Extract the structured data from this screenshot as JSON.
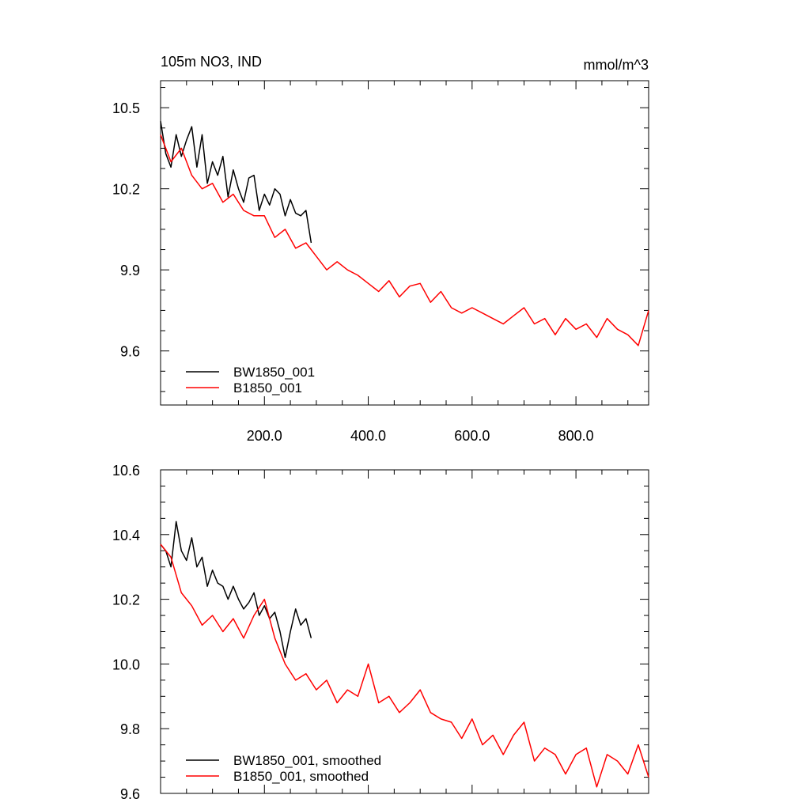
{
  "chart_data": [
    {
      "type": "line",
      "title_left": "105m NO3, IND",
      "title_right": "mmol/m^3",
      "xlim": [
        0,
        940
      ],
      "ylim": [
        9.4,
        10.6
      ],
      "x_ticks": [
        200,
        400,
        600,
        800
      ],
      "x_tick_labels": [
        "200.0",
        "400.0",
        "600.0",
        "800.0"
      ],
      "y_ticks": [
        9.6,
        9.9,
        10.2,
        10.5
      ],
      "y_tick_labels": [
        "9.6",
        "9.9",
        "10.2",
        "10.5"
      ],
      "legend": "bottom-left",
      "series": [
        {
          "name": "BW1850_001",
          "color": "#000000",
          "x": [
            0,
            10,
            20,
            30,
            40,
            50,
            60,
            70,
            80,
            90,
            100,
            110,
            120,
            130,
            140,
            150,
            160,
            170,
            180,
            190,
            200,
            210,
            220,
            230,
            240,
            250,
            260,
            270,
            280,
            290
          ],
          "y": [
            10.45,
            10.33,
            10.28,
            10.4,
            10.32,
            10.38,
            10.43,
            10.28,
            10.4,
            10.22,
            10.3,
            10.25,
            10.32,
            10.17,
            10.27,
            10.2,
            10.15,
            10.24,
            10.25,
            10.12,
            10.18,
            10.14,
            10.2,
            10.18,
            10.1,
            10.16,
            10.11,
            10.1,
            10.12,
            10.0
          ]
        },
        {
          "name": "B1850_001",
          "color": "#ff0000",
          "x": [
            0,
            20,
            40,
            60,
            80,
            100,
            120,
            140,
            160,
            180,
            200,
            220,
            240,
            260,
            280,
            300,
            320,
            340,
            360,
            380,
            400,
            420,
            440,
            460,
            480,
            500,
            520,
            540,
            560,
            580,
            600,
            620,
            640,
            660,
            680,
            700,
            720,
            740,
            760,
            780,
            800,
            820,
            840,
            860,
            880,
            900,
            920,
            940
          ],
          "y": [
            10.4,
            10.3,
            10.35,
            10.25,
            10.2,
            10.22,
            10.15,
            10.18,
            10.12,
            10.1,
            10.1,
            10.02,
            10.05,
            9.98,
            10.0,
            9.95,
            9.9,
            9.93,
            9.9,
            9.88,
            9.85,
            9.82,
            9.86,
            9.8,
            9.84,
            9.85,
            9.78,
            9.82,
            9.76,
            9.74,
            9.76,
            9.74,
            9.72,
            9.7,
            9.73,
            9.76,
            9.7,
            9.72,
            9.66,
            9.72,
            9.68,
            9.7,
            9.65,
            9.72,
            9.68,
            9.66,
            9.62,
            9.75
          ]
        }
      ]
    },
    {
      "type": "line",
      "xlim": [
        0,
        940
      ],
      "ylim": [
        9.6,
        10.6
      ],
      "x_ticks": [
        200,
        400,
        600,
        800
      ],
      "y_ticks": [
        9.6,
        9.8,
        10.0,
        10.2,
        10.4,
        10.6
      ],
      "y_tick_labels": [
        "9.6",
        "9.8",
        "10.0",
        "10.2",
        "10.4",
        "10.6"
      ],
      "legend": "bottom-left",
      "series": [
        {
          "name": "BW1850_001, smoothed",
          "color": "#000000",
          "x": [
            0,
            10,
            20,
            30,
            40,
            50,
            60,
            70,
            80,
            90,
            100,
            110,
            120,
            130,
            140,
            150,
            160,
            170,
            180,
            190,
            200,
            210,
            220,
            230,
            240,
            250,
            260,
            270,
            280,
            290
          ],
          "y": [
            10.37,
            10.35,
            10.3,
            10.44,
            10.35,
            10.32,
            10.39,
            10.3,
            10.33,
            10.24,
            10.29,
            10.25,
            10.24,
            10.2,
            10.24,
            10.2,
            10.17,
            10.19,
            10.22,
            10.15,
            10.18,
            10.14,
            10.16,
            10.1,
            10.02,
            10.1,
            10.17,
            10.12,
            10.14,
            10.08
          ]
        },
        {
          "name": "B1850_001, smoothed",
          "color": "#ff0000",
          "x": [
            0,
            20,
            40,
            60,
            80,
            100,
            120,
            140,
            160,
            180,
            200,
            220,
            240,
            260,
            280,
            300,
            320,
            340,
            360,
            380,
            400,
            420,
            440,
            460,
            480,
            500,
            520,
            540,
            560,
            580,
            600,
            620,
            640,
            660,
            680,
            700,
            720,
            740,
            760,
            780,
            800,
            820,
            840,
            860,
            880,
            900,
            920,
            940
          ],
          "y": [
            10.37,
            10.33,
            10.22,
            10.18,
            10.12,
            10.15,
            10.1,
            10.14,
            10.08,
            10.15,
            10.2,
            10.08,
            10.0,
            9.95,
            9.97,
            9.92,
            9.95,
            9.88,
            9.92,
            9.9,
            10.0,
            9.88,
            9.9,
            9.85,
            9.88,
            9.92,
            9.85,
            9.83,
            9.82,
            9.77,
            9.83,
            9.75,
            9.78,
            9.72,
            9.78,
            9.82,
            9.7,
            9.74,
            9.72,
            9.66,
            9.72,
            9.74,
            9.62,
            9.72,
            9.7,
            9.66,
            9.75,
            9.65
          ]
        }
      ]
    }
  ]
}
